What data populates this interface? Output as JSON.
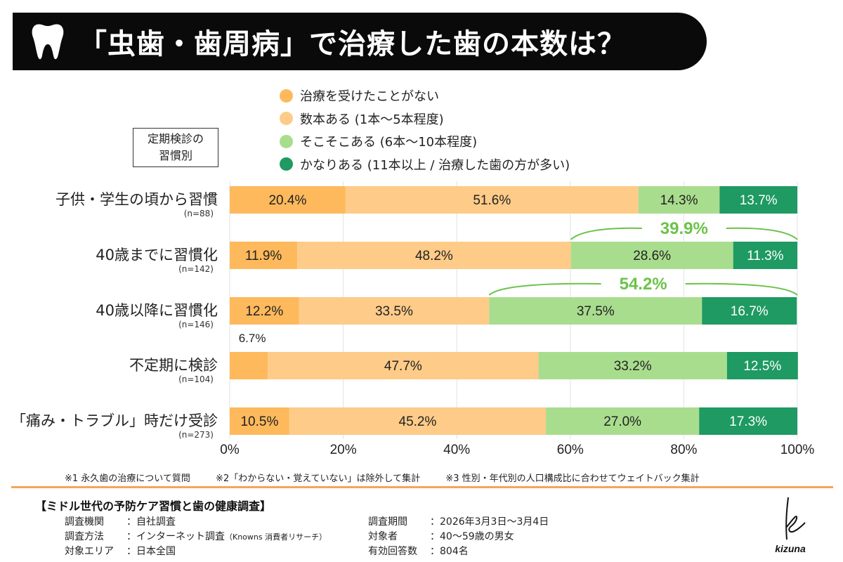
{
  "title": "「虫歯・歯周病」で治療した歯の本数は？",
  "title_icon": "tooth-icon",
  "group_label": [
    "定期検診の",
    "習慣別"
  ],
  "chart_data": {
    "type": "bar",
    "orientation": "horizontal",
    "stacked": true,
    "xlim": [
      0,
      100
    ],
    "x_ticks": [
      "0%",
      "20%",
      "40%",
      "60%",
      "80%",
      "100%"
    ],
    "grid": true,
    "legend_position": "top",
    "categories": [
      {
        "label": "子供・学生の頃から習慣",
        "n": "(n=88)"
      },
      {
        "label": "40歳までに習慣化",
        "n": "(n=142)"
      },
      {
        "label": "40歳以降に習慣化",
        "n": "(n=146)"
      },
      {
        "label": "不定期に検診",
        "n": "(n=104)"
      },
      {
        "label": "「痛み・トラブル」時だけ受診",
        "n": "(n=273)"
      }
    ],
    "series": [
      {
        "name": "治療を受けたことがない",
        "color": "#FDB95C",
        "values": [
          20.4,
          11.9,
          12.2,
          6.7,
          10.5
        ]
      },
      {
        "name": "数本ある (1本〜5本程度)",
        "color": "#FECB88",
        "values": [
          51.6,
          48.2,
          33.5,
          47.7,
          45.2
        ]
      },
      {
        "name": "そこそこある (6本〜10本程度)",
        "color": "#A9DD8E",
        "values": [
          14.3,
          28.6,
          37.5,
          33.2,
          27.0
        ]
      },
      {
        "name": "かなりある (11本以上 / 治療した歯の方が多い)",
        "color": "#1E9A62",
        "values": [
          13.7,
          11.3,
          16.7,
          12.5,
          17.3
        ]
      }
    ],
    "annotations": [
      {
        "row": 1,
        "from_series": 2,
        "label": "39.9%",
        "color": "#6CC24A"
      },
      {
        "row": 2,
        "from_series": 2,
        "label": "54.2%",
        "color": "#6CC24A"
      }
    ]
  },
  "notes": [
    "※1 永久歯の治療について質問",
    "※2「わからない・覚えていない」は除外して集計",
    "※3 性別・年代別の人口構成比に合わせてウェイトバック集計"
  ],
  "survey": {
    "title": "【ミドル世代の予防ケア習慣と歯の健康調査】",
    "left": [
      {
        "k": "調査機関",
        "v": "：自社調査"
      },
      {
        "k": "調査方法",
        "v": "：インターネット調査",
        "small": "（Knowns 消費者リサーチ）"
      },
      {
        "k": "対象エリア",
        "v": "：日本全国"
      }
    ],
    "right": [
      {
        "k": "調査期間",
        "v": "：2026年3月3日〜3月4日"
      },
      {
        "k": "対象者",
        "v": "：40〜59歳の男女"
      },
      {
        "k": "有効回答数",
        "v": "：804名"
      }
    ]
  },
  "logo_text": "kizuna"
}
